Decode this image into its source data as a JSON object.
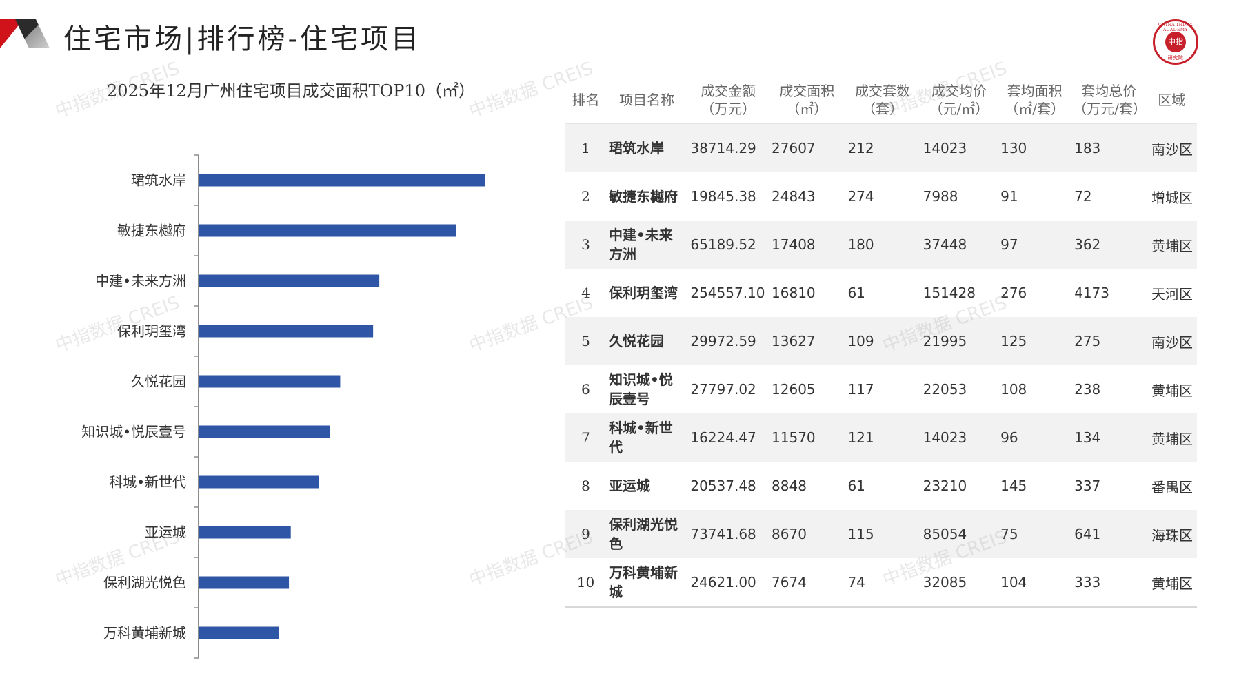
{
  "header": {
    "title": "住宅市场|排行榜-住宅项目",
    "logo_text_top": "CHINA INDEX ACADEMY",
    "logo_text_center": "中指",
    "logo_text_bottom": "研究院"
  },
  "chart_title": "2025年12月广州住宅项目成交面积TOP10（㎡）",
  "watermark": "中指数据 CREIS",
  "colors": {
    "bar": "#2f56a6",
    "accent_red": "#d0121b"
  },
  "chart_data": {
    "type": "bar",
    "orientation": "horizontal",
    "title": "2025年12月广州住宅项目成交面积TOP10（㎡）",
    "categories": [
      "珺筑水岸",
      "敏捷东樾府",
      "中建•未来方洲",
      "保利玥玺湾",
      "久悦花园",
      "知识城•悦辰壹号",
      "科城•新世代",
      "亚运城",
      "保利湖光悦色",
      "万科黄埔新城"
    ],
    "values": [
      27607,
      24843,
      17408,
      16810,
      13627,
      12605,
      11570,
      8848,
      8670,
      7674
    ],
    "xlim": [
      0,
      30000
    ],
    "grid": false,
    "legend": "none"
  },
  "table": {
    "headers": [
      [
        "排名"
      ],
      [
        "项目名称"
      ],
      [
        "成交金额",
        "（万元）"
      ],
      [
        "成交面积",
        "（㎡）"
      ],
      [
        "成交套数",
        "（套）"
      ],
      [
        "成交均价",
        "（元/㎡）"
      ],
      [
        "套均面积",
        "（㎡/套）"
      ],
      [
        "套均总价",
        "（万元/套）"
      ],
      [
        "区域"
      ]
    ],
    "rows": [
      [
        "1",
        "珺筑水岸",
        "38714.29",
        "27607",
        "212",
        "14023",
        "130",
        "183",
        "南沙区"
      ],
      [
        "2",
        "敏捷东樾府",
        "19845.38",
        "24843",
        "274",
        "7988",
        "91",
        "72",
        "增城区"
      ],
      [
        "3",
        "中建•未来方洲",
        "65189.52",
        "17408",
        "180",
        "37448",
        "97",
        "362",
        "黄埔区"
      ],
      [
        "4",
        "保利玥玺湾",
        "254557.10",
        "16810",
        "61",
        "151428",
        "276",
        "4173",
        "天河区"
      ],
      [
        "5",
        "久悦花园",
        "29972.59",
        "13627",
        "109",
        "21995",
        "125",
        "275",
        "南沙区"
      ],
      [
        "6",
        "知识城•悦辰壹号",
        "27797.02",
        "12605",
        "117",
        "22053",
        "108",
        "238",
        "黄埔区"
      ],
      [
        "7",
        "科城•新世代",
        "16224.47",
        "11570",
        "121",
        "14023",
        "96",
        "134",
        "黄埔区"
      ],
      [
        "8",
        "亚运城",
        "20537.48",
        "8848",
        "61",
        "23210",
        "145",
        "337",
        "番禺区"
      ],
      [
        "9",
        "保利湖光悦色",
        "73741.68",
        "8670",
        "115",
        "85054",
        "75",
        "641",
        "海珠区"
      ],
      [
        "10",
        "万科黄埔新城",
        "24621.00",
        "7674",
        "74",
        "32085",
        "104",
        "333",
        "黄埔区"
      ]
    ]
  }
}
